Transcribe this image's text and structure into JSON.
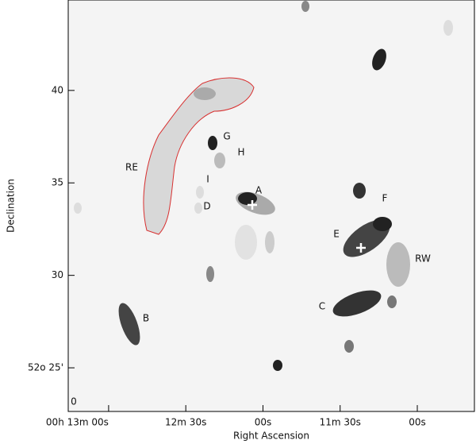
{
  "chart_data": {
    "type": "image",
    "xlabel": "Right Ascension",
    "ylabel": "Declination",
    "xlim": [
      795.7,
      637.8
    ],
    "ylim": [
      22.64,
      44.89
    ],
    "xticks": [
      {
        "value": 780,
        "label": "00h 13m 00s"
      },
      {
        "value": 750,
        "label": "12m 30s"
      },
      {
        "value": 720,
        "label": "00s"
      },
      {
        "value": 690,
        "label": "11m 30s"
      },
      {
        "value": 660,
        "label": "00s"
      }
    ],
    "yticks": [
      {
        "value": 25,
        "label": "52o 25'"
      },
      30,
      35,
      40
    ],
    "annotations": [
      "RE",
      "G",
      "H",
      "I",
      "D",
      "A",
      "F",
      "E",
      "RW",
      "C",
      "B",
      "0"
    ],
    "contour_color": "#d83030"
  }
}
